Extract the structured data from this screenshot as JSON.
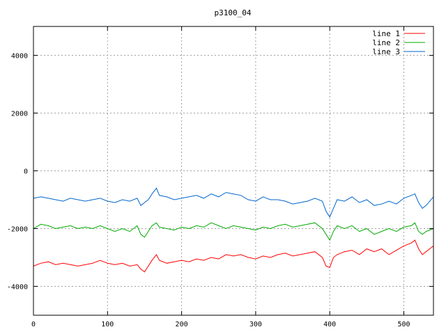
{
  "chart_data": {
    "type": "line",
    "title": "p3100_04",
    "xlabel": "",
    "ylabel": "",
    "xlim": [
      0,
      540
    ],
    "ylim": [
      -5000,
      5000
    ],
    "x_ticks": [
      0,
      100,
      200,
      300,
      400,
      500
    ],
    "y_ticks": [
      -4000,
      -2000,
      0,
      2000,
      4000
    ],
    "grid": true,
    "legend_position": "top-right",
    "series": [
      {
        "name": "line 1",
        "color": "#ff0000",
        "x": [
          0,
          10,
          20,
          30,
          40,
          50,
          60,
          70,
          80,
          90,
          100,
          110,
          120,
          130,
          140,
          145,
          150,
          155,
          160,
          166,
          170,
          180,
          190,
          200,
          210,
          220,
          230,
          240,
          250,
          260,
          270,
          280,
          290,
          300,
          310,
          320,
          330,
          340,
          350,
          360,
          370,
          380,
          390,
          395,
          400,
          405,
          410,
          420,
          430,
          440,
          450,
          460,
          470,
          480,
          490,
          500,
          510,
          515,
          520,
          525,
          530,
          540
        ],
        "values": [
          -3300,
          -3200,
          -3150,
          -3250,
          -3200,
          -3250,
          -3300,
          -3250,
          -3200,
          -3100,
          -3200,
          -3250,
          -3200,
          -3300,
          -3250,
          -3400,
          -3500,
          -3300,
          -3100,
          -2900,
          -3100,
          -3200,
          -3150,
          -3100,
          -3150,
          -3050,
          -3100,
          -3000,
          -3050,
          -2900,
          -2950,
          -2900,
          -3000,
          -3050,
          -2950,
          -3000,
          -2900,
          -2850,
          -2950,
          -2900,
          -2850,
          -2800,
          -3000,
          -3300,
          -3350,
          -3000,
          -2900,
          -2800,
          -2750,
          -2900,
          -2700,
          -2800,
          -2700,
          -2900,
          -2750,
          -2600,
          -2500,
          -2400,
          -2700,
          -2900,
          -2800,
          -2600
        ]
      },
      {
        "name": "line 2",
        "color": "#00aa00",
        "x": [
          0,
          10,
          20,
          30,
          40,
          50,
          60,
          70,
          80,
          90,
          100,
          110,
          120,
          130,
          140,
          145,
          150,
          155,
          160,
          166,
          170,
          180,
          190,
          200,
          210,
          220,
          230,
          240,
          250,
          260,
          270,
          280,
          290,
          300,
          310,
          320,
          330,
          340,
          350,
          360,
          370,
          380,
          390,
          395,
          400,
          405,
          410,
          420,
          430,
          440,
          450,
          460,
          470,
          480,
          490,
          500,
          510,
          515,
          520,
          525,
          530,
          540
        ],
        "values": [
          -2000,
          -1850,
          -1900,
          -2000,
          -1950,
          -1900,
          -2000,
          -1950,
          -2000,
          -1900,
          -2000,
          -2100,
          -2000,
          -2100,
          -1900,
          -2200,
          -2300,
          -2100,
          -1900,
          -1800,
          -1950,
          -2000,
          -2050,
          -1950,
          -2000,
          -1900,
          -1950,
          -1800,
          -1900,
          -2000,
          -1900,
          -1950,
          -2000,
          -2050,
          -1950,
          -2000,
          -1900,
          -1850,
          -1950,
          -1900,
          -1850,
          -1800,
          -2000,
          -2200,
          -2400,
          -2100,
          -1900,
          -2000,
          -1900,
          -2100,
          -2000,
          -2200,
          -2100,
          -2000,
          -2100,
          -1950,
          -1900,
          -1800,
          -2100,
          -2200,
          -2100,
          -2000
        ]
      },
      {
        "name": "line 3",
        "color": "#0066cc",
        "x": [
          0,
          10,
          20,
          30,
          40,
          50,
          60,
          70,
          80,
          90,
          100,
          110,
          120,
          130,
          140,
          145,
          150,
          155,
          160,
          166,
          170,
          180,
          190,
          200,
          210,
          220,
          230,
          240,
          250,
          260,
          270,
          280,
          290,
          300,
          310,
          320,
          330,
          340,
          350,
          360,
          370,
          380,
          390,
          395,
          400,
          405,
          410,
          420,
          430,
          440,
          450,
          460,
          470,
          480,
          490,
          500,
          510,
          515,
          520,
          525,
          530,
          540
        ],
        "values": [
          -950,
          -900,
          -950,
          -1000,
          -1050,
          -950,
          -1000,
          -1050,
          -1000,
          -950,
          -1050,
          -1100,
          -1000,
          -1050,
          -950,
          -1200,
          -1100,
          -1000,
          -800,
          -600,
          -850,
          -900,
          -1000,
          -950,
          -900,
          -850,
          -950,
          -800,
          -900,
          -750,
          -800,
          -850,
          -1000,
          -1050,
          -900,
          -1000,
          -1000,
          -1050,
          -1150,
          -1100,
          -1050,
          -950,
          -1050,
          -1400,
          -1600,
          -1300,
          -1000,
          -1050,
          -900,
          -1100,
          -1000,
          -1200,
          -1150,
          -1050,
          -1150,
          -950,
          -850,
          -800,
          -1100,
          -1300,
          -1200,
          -900
        ]
      }
    ]
  }
}
